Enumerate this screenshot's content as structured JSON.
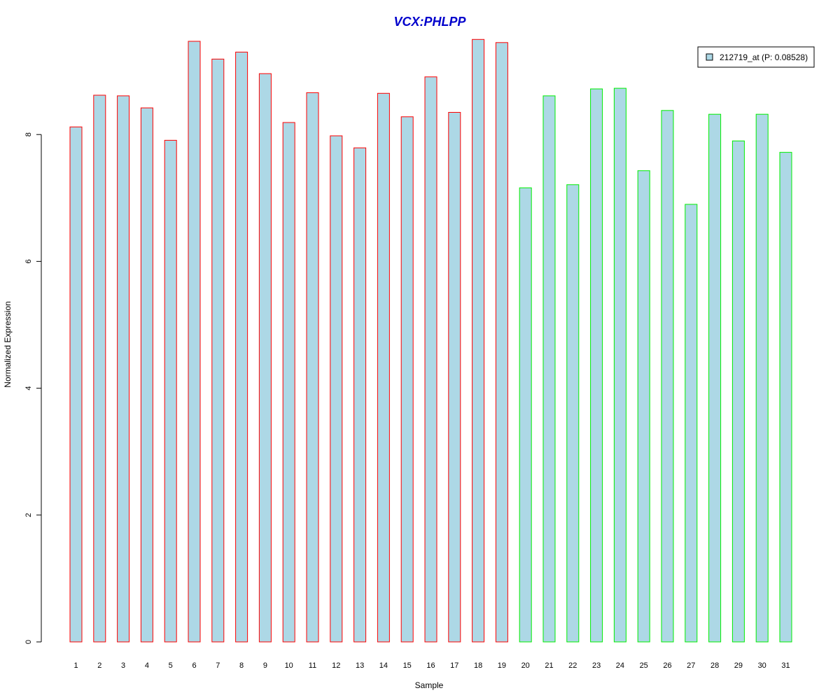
{
  "chart_data": {
    "type": "bar",
    "title": "VCX:PHLPP",
    "xlabel": "Sample",
    "ylabel": "Normalized Expression",
    "categories": [
      "1",
      "2",
      "3",
      "4",
      "5",
      "6",
      "7",
      "8",
      "9",
      "10",
      "11",
      "12",
      "13",
      "14",
      "15",
      "16",
      "17",
      "18",
      "19",
      "20",
      "21",
      "22",
      "23",
      "24",
      "25",
      "26",
      "27",
      "28",
      "29",
      "30",
      "31"
    ],
    "values": [
      8.12,
      8.62,
      8.61,
      8.42,
      7.91,
      9.47,
      9.19,
      9.3,
      8.96,
      8.19,
      8.66,
      7.98,
      7.79,
      8.65,
      8.28,
      8.91,
      8.35,
      9.5,
      9.45,
      7.16,
      8.61,
      7.21,
      8.72,
      8.73,
      7.43,
      8.38,
      6.9,
      8.32,
      7.9,
      8.32,
      7.72
    ],
    "groups": [
      "1",
      "1",
      "1",
      "1",
      "1",
      "1",
      "1",
      "1",
      "1",
      "1",
      "1",
      "1",
      "1",
      "1",
      "1",
      "1",
      "1",
      "1",
      "1",
      "2",
      "2",
      "2",
      "2",
      "2",
      "2",
      "2",
      "2",
      "2",
      "2",
      "2",
      "2"
    ],
    "group_colors": {
      "1": "#ff0000",
      "2": "#00ee00"
    },
    "bar_fill": "#add8e6",
    "title_color": "#0000cc",
    "ylim": [
      0,
      9.6
    ],
    "yticks": [
      "0",
      "2",
      "4",
      "6",
      "8"
    ],
    "grid": false,
    "legend": {
      "position": "top-right",
      "entries": [
        {
          "label": "212719_at (P: 0.08528)",
          "color": "#add8e6"
        }
      ]
    }
  }
}
